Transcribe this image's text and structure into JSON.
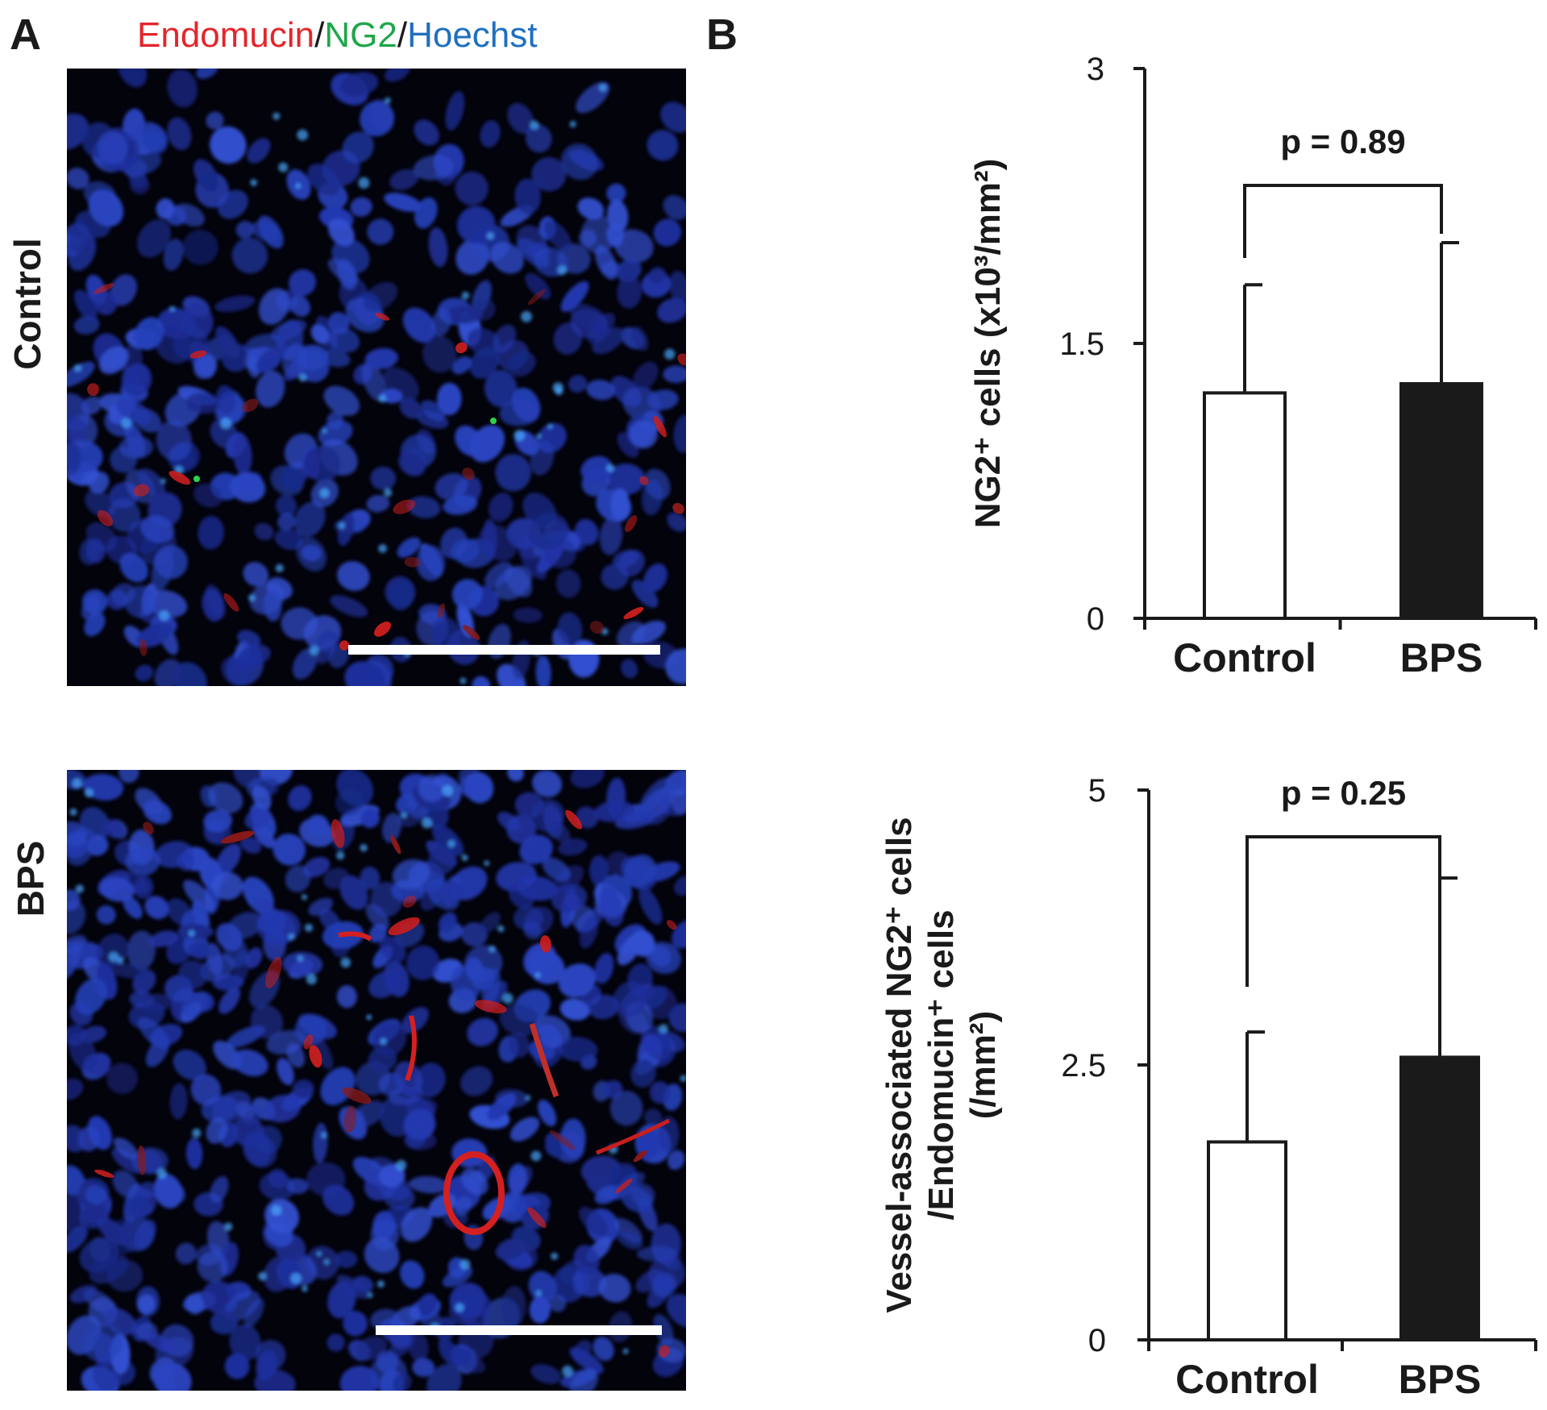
{
  "panels": {
    "a": {
      "letter": "A",
      "stain": {
        "parts": [
          {
            "text": "Endomucin",
            "color": "#e3262c"
          },
          {
            "text": "/",
            "color": "#1a1a1a"
          },
          {
            "text": "NG2",
            "color": "#1fa64a"
          },
          {
            "text": "/",
            "color": "#1a1a1a"
          },
          {
            "text": "Hoechst",
            "color": "#1f6fc0"
          }
        ]
      },
      "rows": [
        "Control",
        "BPS"
      ]
    },
    "b": {
      "letter": "B"
    }
  },
  "chart_data": [
    {
      "type": "bar",
      "categories": [
        "Control",
        "BPS"
      ],
      "values": [
        1.23,
        1.28
      ],
      "error_upper": [
        1.82,
        2.05
      ],
      "bar_colors": [
        "#ffffff",
        "#1a1a1a"
      ],
      "ylabel": "NG2⁺ cells (x10³/mm²)",
      "ylim": [
        0,
        3
      ],
      "yticks": [
        "0",
        "1.5",
        "3"
      ],
      "annotation": "p = 0.89"
    },
    {
      "type": "bar",
      "categories": [
        "Control",
        "BPS"
      ],
      "values": [
        1.8,
        2.57
      ],
      "error_upper": [
        2.8,
        4.2
      ],
      "bar_colors": [
        "#ffffff",
        "#1a1a1a"
      ],
      "ylabel_lines": [
        "Vessel-associated NG2⁺ cells",
        "/Endomucin⁺ cells",
        "(/mm²)"
      ],
      "ylim": [
        0,
        5
      ],
      "yticks": [
        "0",
        "2.5",
        "5"
      ],
      "annotation": "p = 0.25"
    }
  ]
}
